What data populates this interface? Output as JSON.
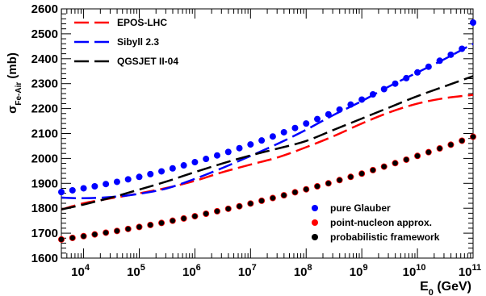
{
  "chart_data": {
    "type": "line",
    "xlabel_main": "E",
    "xlabel_sub": "0",
    "xlabel_unit": " (GeV)",
    "ylabel_main": "σ",
    "ylabel_sub": "Fe-Air",
    "ylabel_unit": " (mb)",
    "xscale": "log",
    "xlim_log10": [
      3.6,
      11.0
    ],
    "ylim": [
      1600,
      2600
    ],
    "grid": false,
    "legend_placement_lines": "top-left",
    "legend_placement_points": "bottom-right",
    "y_ticks": [
      "1600",
      "1700",
      "1800",
      "1900",
      "2000",
      "2100",
      "2200",
      "2300",
      "2400",
      "2500",
      "2600"
    ],
    "x_ticks": [
      {
        "base": "10",
        "exp": "4",
        "log10": 4
      },
      {
        "base": "10",
        "exp": "5",
        "log10": 5
      },
      {
        "base": "10",
        "exp": "6",
        "log10": 6
      },
      {
        "base": "10",
        "exp": "7",
        "log10": 7
      },
      {
        "base": "10",
        "exp": "8",
        "log10": 8
      },
      {
        "base": "10",
        "exp": "9",
        "log10": 9
      },
      {
        "base": "10",
        "exp": "10",
        "log10": 10
      },
      {
        "base": "10",
        "exp": "11",
        "log10": 11
      }
    ],
    "line_series": [
      {
        "name": "EPOS-LHC",
        "color": "#ff0000",
        "dash": "long-dash",
        "points": [
          [
            3.6,
            1795
          ],
          [
            4.0,
            1820
          ],
          [
            4.5,
            1840
          ],
          [
            5.0,
            1860
          ],
          [
            5.5,
            1882
          ],
          [
            6.0,
            1910
          ],
          [
            6.5,
            1945
          ],
          [
            7.0,
            1975
          ],
          [
            7.5,
            2005
          ],
          [
            8.0,
            2045
          ],
          [
            8.5,
            2090
          ],
          [
            9.0,
            2140
          ],
          [
            9.5,
            2185
          ],
          [
            10.0,
            2220
          ],
          [
            10.5,
            2242
          ],
          [
            11.0,
            2255
          ]
        ]
      },
      {
        "name": "Sibyll 2.3",
        "color": "#0000ff",
        "dash": "long-dash",
        "points": [
          [
            3.6,
            1843
          ],
          [
            4.0,
            1840
          ],
          [
            4.5,
            1845
          ],
          [
            5.0,
            1858
          ],
          [
            5.5,
            1880
          ],
          [
            6.0,
            1918
          ],
          [
            6.5,
            1962
          ],
          [
            7.0,
            2010
          ],
          [
            7.5,
            2060
          ],
          [
            8.0,
            2115
          ],
          [
            8.5,
            2175
          ],
          [
            9.0,
            2230
          ],
          [
            9.5,
            2290
          ],
          [
            10.0,
            2345
          ],
          [
            10.5,
            2400
          ],
          [
            11.0,
            2460
          ]
        ]
      },
      {
        "name": "QGSJET II-04",
        "color": "#000000",
        "dash": "long-dash",
        "points": [
          [
            3.6,
            1795
          ],
          [
            4.0,
            1815
          ],
          [
            4.5,
            1843
          ],
          [
            5.0,
            1875
          ],
          [
            5.5,
            1908
          ],
          [
            6.0,
            1945
          ],
          [
            6.5,
            1980
          ],
          [
            7.0,
            2012
          ],
          [
            7.5,
            2040
          ],
          [
            8.0,
            2070
          ],
          [
            8.5,
            2115
          ],
          [
            9.0,
            2160
          ],
          [
            9.5,
            2205
          ],
          [
            10.0,
            2250
          ],
          [
            10.5,
            2290
          ],
          [
            11.0,
            2330
          ]
        ]
      }
    ],
    "point_series": [
      {
        "name": "pure Glauber",
        "color": "#0000ff",
        "points": [
          [
            3.6,
            1865
          ],
          [
            3.8,
            1872
          ],
          [
            4.0,
            1880
          ],
          [
            4.2,
            1888
          ],
          [
            4.4,
            1897
          ],
          [
            4.6,
            1906
          ],
          [
            4.8,
            1916
          ],
          [
            5.0,
            1926
          ],
          [
            5.2,
            1937
          ],
          [
            5.4,
            1948
          ],
          [
            5.6,
            1960
          ],
          [
            5.8,
            1972
          ],
          [
            6.0,
            1985
          ],
          [
            6.2,
            1998
          ],
          [
            6.4,
            2012
          ],
          [
            6.6,
            2026
          ],
          [
            6.8,
            2041
          ],
          [
            7.0,
            2056
          ],
          [
            7.2,
            2072
          ],
          [
            7.4,
            2088
          ],
          [
            7.6,
            2105
          ],
          [
            7.8,
            2122
          ],
          [
            8.0,
            2140
          ],
          [
            8.2,
            2158
          ],
          [
            8.4,
            2177
          ],
          [
            8.6,
            2196
          ],
          [
            8.8,
            2216
          ],
          [
            9.0,
            2236
          ],
          [
            9.2,
            2257
          ],
          [
            9.4,
            2278
          ],
          [
            9.6,
            2300
          ],
          [
            9.8,
            2322
          ],
          [
            10.0,
            2345
          ],
          [
            10.2,
            2368
          ],
          [
            10.4,
            2392
          ],
          [
            10.6,
            2416
          ],
          [
            10.8,
            2440
          ],
          [
            11.0,
            2545
          ]
        ]
      },
      {
        "name": "point-nucleon approx.",
        "color": "#ff0000",
        "points": [
          [
            3.6,
            1675
          ],
          [
            3.8,
            1681
          ],
          [
            4.0,
            1688
          ],
          [
            4.2,
            1695
          ],
          [
            4.4,
            1702
          ],
          [
            4.6,
            1709
          ],
          [
            4.8,
            1717
          ],
          [
            5.0,
            1725
          ],
          [
            5.2,
            1733
          ],
          [
            5.4,
            1741
          ],
          [
            5.6,
            1750
          ],
          [
            5.8,
            1759
          ],
          [
            6.0,
            1768
          ],
          [
            6.2,
            1778
          ],
          [
            6.4,
            1788
          ],
          [
            6.6,
            1798
          ],
          [
            6.8,
            1808
          ],
          [
            7.0,
            1819
          ],
          [
            7.2,
            1830
          ],
          [
            7.4,
            1841
          ],
          [
            7.6,
            1852
          ],
          [
            7.8,
            1864
          ],
          [
            8.0,
            1876
          ],
          [
            8.2,
            1888
          ],
          [
            8.4,
            1900
          ],
          [
            8.6,
            1913
          ],
          [
            8.8,
            1926
          ],
          [
            9.0,
            1939
          ],
          [
            9.2,
            1953
          ],
          [
            9.4,
            1967
          ],
          [
            9.6,
            1981
          ],
          [
            9.8,
            1995
          ],
          [
            10.0,
            2010
          ],
          [
            10.2,
            2025
          ],
          [
            10.4,
            2040
          ],
          [
            10.6,
            2055
          ],
          [
            10.8,
            2071
          ],
          [
            11.0,
            2087
          ]
        ]
      },
      {
        "name": "probabilistic framework",
        "color": "#000000",
        "points": [
          [
            3.6,
            1675
          ],
          [
            3.8,
            1681
          ],
          [
            4.0,
            1688
          ],
          [
            4.2,
            1695
          ],
          [
            4.4,
            1702
          ],
          [
            4.6,
            1709
          ],
          [
            4.8,
            1717
          ],
          [
            5.0,
            1725
          ],
          [
            5.2,
            1733
          ],
          [
            5.4,
            1741
          ],
          [
            5.6,
            1750
          ],
          [
            5.8,
            1759
          ],
          [
            6.0,
            1768
          ],
          [
            6.2,
            1778
          ],
          [
            6.4,
            1788
          ],
          [
            6.6,
            1798
          ],
          [
            6.8,
            1808
          ],
          [
            7.0,
            1819
          ],
          [
            7.2,
            1830
          ],
          [
            7.4,
            1841
          ],
          [
            7.6,
            1852
          ],
          [
            7.8,
            1864
          ],
          [
            8.0,
            1876
          ],
          [
            8.2,
            1888
          ],
          [
            8.4,
            1900
          ],
          [
            8.6,
            1913
          ],
          [
            8.8,
            1926
          ],
          [
            9.0,
            1939
          ],
          [
            9.2,
            1953
          ],
          [
            9.4,
            1967
          ],
          [
            9.6,
            1981
          ],
          [
            9.8,
            1995
          ],
          [
            10.0,
            2010
          ],
          [
            10.2,
            2025
          ],
          [
            10.4,
            2040
          ],
          [
            10.6,
            2055
          ],
          [
            10.8,
            2071
          ],
          [
            11.0,
            2087
          ]
        ]
      }
    ]
  }
}
